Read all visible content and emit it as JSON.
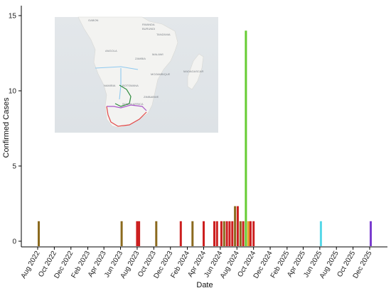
{
  "chart_data": {
    "type": "bar",
    "xlabel": "Date",
    "ylabel": "Confirmed Cases",
    "ylim": [
      0,
      15.5
    ],
    "yticks": [
      0,
      5,
      10,
      15
    ],
    "x_domain": [
      "2022-07-20",
      "2026-01-10"
    ],
    "xticks": [
      {
        "date": "2022-08-01",
        "label": "Aug 2022"
      },
      {
        "date": "2022-10-01",
        "label": "Oct 2022"
      },
      {
        "date": "2022-12-01",
        "label": "Dec 2022"
      },
      {
        "date": "2023-02-01",
        "label": "Feb 2023"
      },
      {
        "date": "2023-04-01",
        "label": "Apr 2023"
      },
      {
        "date": "2023-06-01",
        "label": "Jun 2023"
      },
      {
        "date": "2023-08-01",
        "label": "Aug 2023"
      },
      {
        "date": "2023-10-01",
        "label": "Oct 2023"
      },
      {
        "date": "2023-12-01",
        "label": "Dec 2023"
      },
      {
        "date": "2024-02-01",
        "label": "Feb 2024"
      },
      {
        "date": "2024-04-01",
        "label": "Apr 2024"
      },
      {
        "date": "2024-06-01",
        "label": "Jun 2024"
      },
      {
        "date": "2024-08-01",
        "label": "Aug 2024"
      },
      {
        "date": "2024-10-01",
        "label": "Oct 2024"
      },
      {
        "date": "2024-12-01",
        "label": "Dec 2024"
      },
      {
        "date": "2025-02-01",
        "label": "Feb 2025"
      },
      {
        "date": "2025-04-01",
        "label": "Apr 2025"
      },
      {
        "date": "2025-06-01",
        "label": "Jun 2025"
      },
      {
        "date": "2025-08-01",
        "label": "Aug 2025"
      },
      {
        "date": "2025-10-01",
        "label": "Oct 2025"
      },
      {
        "date": "2025-12-01",
        "label": "Dec 2025"
      }
    ],
    "grid": false,
    "legend": "none",
    "bars": [
      {
        "date": "2022-08-05",
        "value": 1,
        "color": "#8b6a1e"
      },
      {
        "date": "2023-06-05",
        "value": 1,
        "color": "#8b6a1e"
      },
      {
        "date": "2023-08-01",
        "value": 1,
        "color": "#cc1f1f"
      },
      {
        "date": "2023-08-08",
        "value": 1,
        "color": "#cc1f1f"
      },
      {
        "date": "2023-10-10",
        "value": 1,
        "color": "#8b6a1e"
      },
      {
        "date": "2024-01-08",
        "value": 1,
        "color": "#cc1f1f"
      },
      {
        "date": "2024-02-20",
        "value": 1,
        "color": "#8b6a1e"
      },
      {
        "date": "2024-04-01",
        "value": 1,
        "color": "#cc1f1f"
      },
      {
        "date": "2024-05-10",
        "value": 1,
        "color": "#cc1f1f"
      },
      {
        "date": "2024-05-20",
        "value": 1,
        "color": "#cc1f1f"
      },
      {
        "date": "2024-06-05",
        "value": 1,
        "color": "#cc1f1f"
      },
      {
        "date": "2024-06-15",
        "value": 1,
        "color": "#8b6a1e"
      },
      {
        "date": "2024-06-25",
        "value": 1,
        "color": "#cc1f1f"
      },
      {
        "date": "2024-07-05",
        "value": 1,
        "color": "#cc1f1f"
      },
      {
        "date": "2024-07-15",
        "value": 1,
        "color": "#cc1f1f"
      },
      {
        "date": "2024-07-25",
        "value": 2,
        "color": "#8b6a1e"
      },
      {
        "date": "2024-08-04",
        "value": 2,
        "color": "#cc1f1f"
      },
      {
        "date": "2024-08-14",
        "value": 1,
        "color": "#8b6a1e"
      },
      {
        "date": "2024-08-24",
        "value": 1,
        "color": "#cc1f1f"
      },
      {
        "date": "2024-09-03",
        "value": 14,
        "color": "#66cc33"
      },
      {
        "date": "2024-09-12",
        "value": 1,
        "color": "#e3a02a"
      },
      {
        "date": "2024-09-20",
        "value": 1,
        "color": "#cc1f1f"
      },
      {
        "date": "2024-10-01",
        "value": 1,
        "color": "#cc1f1f"
      },
      {
        "date": "2025-06-05",
        "value": 1,
        "color": "#55d8e8"
      },
      {
        "date": "2025-12-05",
        "value": 1,
        "color": "#7a3ccf"
      }
    ],
    "inset_map": {
      "labels": [
        "GABON",
        "RWANDA",
        "BURUNDI",
        "TANZANIA",
        "ANGOLA",
        "MALAWI",
        "ZAMBIA",
        "MADAGASCAR",
        "MOZAMBIQUE",
        "NAMIBIA",
        "BOTSWANA",
        "ZIMBABWE",
        "SOUTH AFRICA"
      ]
    }
  }
}
